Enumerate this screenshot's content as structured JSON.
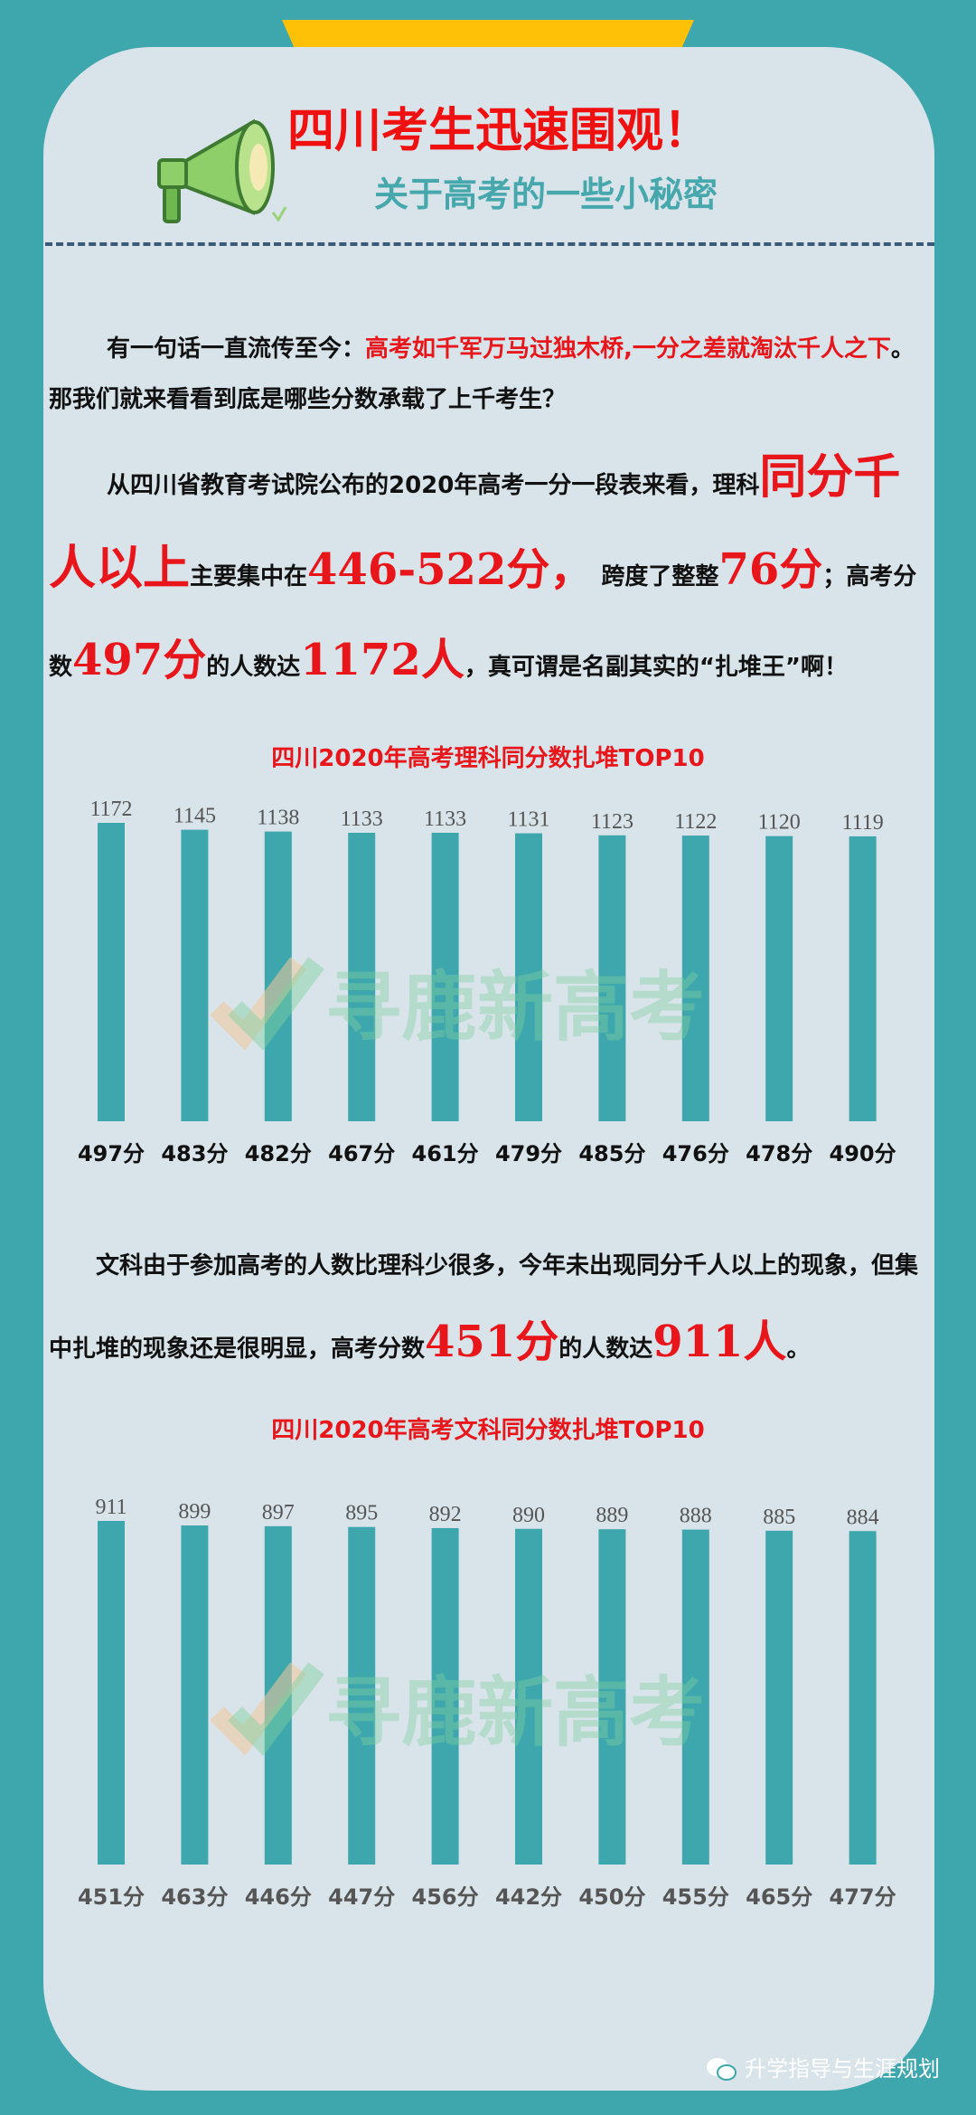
{
  "header": {
    "title": "四川考生迅速围观！",
    "subtitle": "关于高考的一些小秘密"
  },
  "intro": {
    "p1_a": "有一句话一直流传至今：",
    "p1_red": "高考如千军万马过独木桥,一分之差就淘汰千人之下",
    "p1_b": "。那我们就来看看到底是哪些分数承载了上千考生？",
    "p2_a": "从四川省教育考试院公布的2020年高考一分一段表来看，理科",
    "p2_big1": "同分千人以上",
    "p2_b": "主要集中在",
    "p2_range": "446-522分，",
    "p2_c": "跨度了整整",
    "p2_span": "76分",
    "p2_d": "；高考分数",
    "p2_score": "497分",
    "p2_e": "的人数达",
    "p2_count": "1172人",
    "p2_f": "，真可谓是名副其实的“扎堆王”啊！"
  },
  "liberal_text": {
    "a": "文科由于参加高考的人数比理科少很多，今年未出现同分千人以上的现象，但集中扎堆的现象还是很明显，高考分数",
    "score": "451分",
    "b": "的人数达",
    "count": "911人",
    "c": "。"
  },
  "watermark": "寻鹿新高考",
  "footer": {
    "account": "升学指导与生涯规划"
  },
  "colors": {
    "background": "#3ea7ad",
    "card": "#d8e4ea",
    "bar": "#3ea7ad",
    "accent_red": "#e8161b",
    "tab": "#ffc107"
  },
  "chart_data": [
    {
      "type": "bar",
      "title": "四川2020年高考理科同分数扎堆TOP10",
      "categories": [
        "497分",
        "483分",
        "482分",
        "467分",
        "461分",
        "479分",
        "485分",
        "476分",
        "478分",
        "490分"
      ],
      "values": [
        1172,
        1145,
        1138,
        1133,
        1133,
        1131,
        1123,
        1122,
        1120,
        1119
      ],
      "ylim": [
        0,
        1172
      ]
    },
    {
      "type": "bar",
      "title": "四川2020年高考文科同分数扎堆TOP10",
      "categories": [
        "451分",
        "463分",
        "446分",
        "447分",
        "456分",
        "442分",
        "450分",
        "455分",
        "465分",
        "477分"
      ],
      "values": [
        911,
        899,
        897,
        895,
        892,
        890,
        889,
        888,
        885,
        884
      ],
      "ylim": [
        0,
        911
      ]
    }
  ]
}
